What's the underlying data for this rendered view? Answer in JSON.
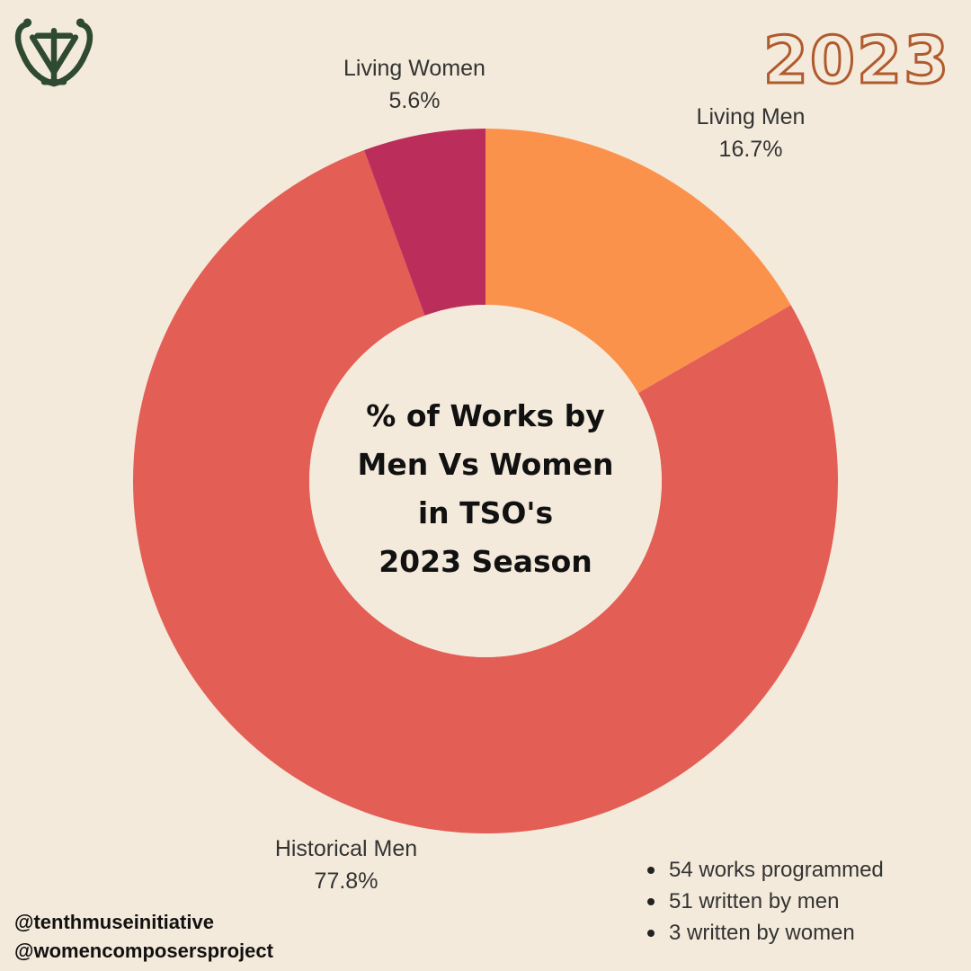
{
  "badge": {
    "year": "2023"
  },
  "colors": {
    "background": "#f4eadb",
    "living_men": "#fb924c",
    "historical_men": "#e35e55",
    "living_women": "#bb2e5c",
    "logo": "#2f4a32",
    "year_outline": "#b05a2e"
  },
  "icons": {
    "logo": "lyre-monogram-logo-icon"
  },
  "chart_data": {
    "type": "pie",
    "style": "donut",
    "title_lines": [
      "% of Works by",
      "Men Vs Women",
      "in TSO's",
      "2023 Season"
    ],
    "slices": [
      {
        "label": "Living Men",
        "value": 16.7,
        "value_label": "16.7%",
        "color": "#fb924c"
      },
      {
        "label": "Historical Men",
        "value": 77.8,
        "value_label": "77.8%",
        "color": "#e35e55"
      },
      {
        "label": "Living Women",
        "value": 5.6,
        "value_label": "5.6%",
        "color": "#bb2e5c"
      }
    ],
    "legend": "none"
  },
  "stats": [
    "54 works programmed",
    "51 written by men",
    "3 written by women"
  ],
  "handles": [
    "@tenthmuseinitiative",
    "@womencomposersproject"
  ]
}
